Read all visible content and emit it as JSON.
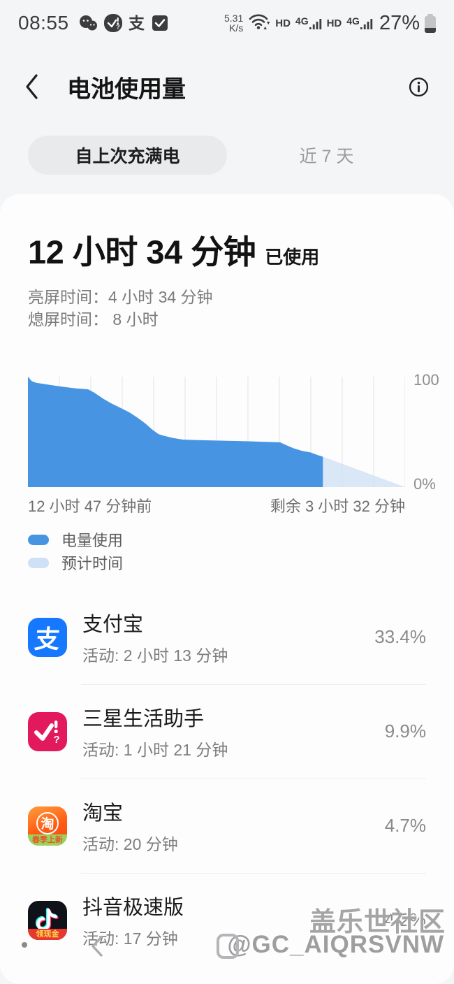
{
  "status_bar": {
    "time": "08:55",
    "net_speed": {
      "value": "5.31",
      "unit": "K/s"
    },
    "volte_label_1": "HD",
    "network_label_1": "4G",
    "volte_label_2": "HD",
    "network_label_2": "4G",
    "battery_percent": "27%"
  },
  "header": {
    "title": "电池使用量"
  },
  "tabs": [
    {
      "label": "自上次充满电",
      "active": true
    },
    {
      "label": "近 7 天",
      "active": false
    }
  ],
  "summary": {
    "duration": "12 小时 34 分钟",
    "duration_suffix": "已使用",
    "screen_on_line": "亮屏时间：4 小时 34 分钟",
    "screen_off_line": "熄屏时间： 8 小时"
  },
  "chart_data": {
    "type": "area",
    "ylim": [
      0,
      100
    ],
    "y_ticks": [
      "100",
      "0%"
    ],
    "x_left_label": "12 小时 47 分钟前",
    "x_right_label": "剩余 3 小时 32 分钟",
    "grid": true,
    "gridline_count": 12,
    "legend_position": "bottom-left",
    "series": [
      {
        "name": "电量使用",
        "color": "#4795e2",
        "points": [
          [
            0,
            100
          ],
          [
            1,
            96
          ],
          [
            2.2,
            94.5
          ],
          [
            4,
            93.5
          ],
          [
            6,
            92.5
          ],
          [
            9,
            91
          ],
          [
            12.5,
            89.5
          ],
          [
            16,
            88.5
          ],
          [
            17.6,
            85.5
          ],
          [
            20,
            80
          ],
          [
            22,
            76
          ],
          [
            25,
            71
          ],
          [
            27,
            67.5
          ],
          [
            29,
            63
          ],
          [
            31,
            58
          ],
          [
            33,
            52
          ],
          [
            34.6,
            48
          ],
          [
            36,
            46.5
          ],
          [
            38.5,
            44.5
          ],
          [
            41,
            43
          ],
          [
            45,
            42.6
          ],
          [
            52,
            42
          ],
          [
            58,
            41.5
          ],
          [
            63,
            41
          ],
          [
            66.8,
            40.6
          ],
          [
            68.5,
            38
          ],
          [
            70.4,
            35.2
          ],
          [
            72.5,
            33
          ],
          [
            75,
            31.3
          ],
          [
            76.8,
            29
          ],
          [
            78.2,
            27.5
          ]
        ]
      },
      {
        "name": "预计时间",
        "color": "#cfe1f4",
        "points": [
          [
            78.2,
            27.5
          ],
          [
            100,
            0
          ]
        ]
      }
    ]
  },
  "apps": [
    {
      "name": "支付宝",
      "activity": "活动: 2 小时 13 分钟",
      "percent": "33.4%",
      "icon": "alipay-icon",
      "badge": ""
    },
    {
      "name": "三星生活助手",
      "activity": "活动: 1 小时 21 分钟",
      "percent": "9.9%",
      "icon": "samsung-life-icon",
      "badge": ""
    },
    {
      "name": "淘宝",
      "activity": "活动: 20 分钟",
      "percent": "4.7%",
      "icon": "taobao-icon",
      "badge": "春季上新"
    },
    {
      "name": "抖音极速版",
      "activity": "活动: 17 分钟",
      "percent": "4.2%",
      "icon": "douyin-icon",
      "badge": "领现金"
    }
  ],
  "watermark": {
    "line1": "盖乐世社区",
    "line2": "@GC_AIQRSVNW"
  }
}
